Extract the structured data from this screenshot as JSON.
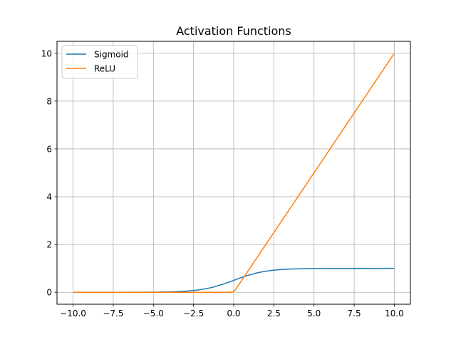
{
  "chart_data": {
    "type": "line",
    "title": "Activation Functions",
    "xlabel": "",
    "ylabel": "",
    "xlim": [
      -11.0,
      11.0
    ],
    "ylim": [
      -0.5,
      10.5
    ],
    "xticks": [
      -10.0,
      -7.5,
      -5.0,
      -2.5,
      0.0,
      2.5,
      5.0,
      7.5,
      10.0
    ],
    "xtick_labels": [
      "−10.0",
      "−7.5",
      "−5.0",
      "−2.5",
      "0.0",
      "2.5",
      "5.0",
      "7.5",
      "10.0"
    ],
    "yticks": [
      0,
      2,
      4,
      6,
      8,
      10
    ],
    "ytick_labels": [
      "0",
      "2",
      "4",
      "6",
      "8",
      "10"
    ],
    "grid": true,
    "legend_position": "upper left",
    "x_range": [
      -10,
      10
    ],
    "series": [
      {
        "name": "Sigmoid",
        "color": "#1f77b4",
        "function": "1/(1+exp(-x))",
        "x": [
          -10,
          -7.5,
          -5,
          -2.5,
          -1,
          0,
          1,
          2.5,
          5,
          7.5,
          10
        ],
        "values": [
          4.54e-05,
          0.00055,
          0.0067,
          0.076,
          0.269,
          0.5,
          0.731,
          0.924,
          0.993,
          0.9994,
          0.99995
        ]
      },
      {
        "name": "ReLU",
        "color": "#ff7f0e",
        "function": "max(0,x)",
        "x": [
          -10,
          -7.5,
          -5,
          -2.5,
          0,
          2.5,
          5,
          7.5,
          10
        ],
        "values": [
          0,
          0,
          0,
          0,
          0,
          2.5,
          5,
          7.5,
          10
        ]
      }
    ]
  }
}
